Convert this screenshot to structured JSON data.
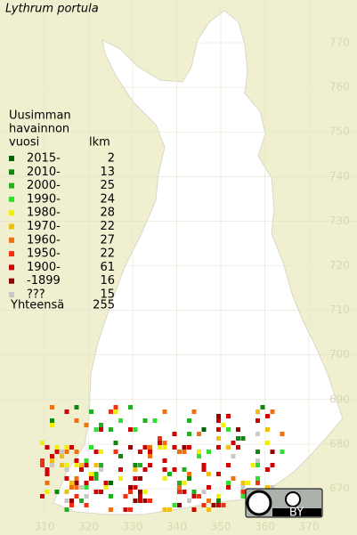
{
  "title": "Lythrum portula",
  "legend": {
    "heading": [
      "Uusimman",
      "havainnon",
      "vuosi"
    ],
    "count_heading": "lkm",
    "items": [
      {
        "label": "2015-",
        "count": 2,
        "color": "#006400"
      },
      {
        "label": "2010-",
        "count": 13,
        "color": "#108810"
      },
      {
        "label": "2000-",
        "count": 25,
        "color": "#20b020"
      },
      {
        "label": "1990-",
        "count": 24,
        "color": "#30e030"
      },
      {
        "label": "1980-",
        "count": 28,
        "color": "#f0f000"
      },
      {
        "label": "1970-",
        "count": 22,
        "color": "#f0c010"
      },
      {
        "label": "1960-",
        "count": 27,
        "color": "#f07010"
      },
      {
        "label": "1950-",
        "count": 22,
        "color": "#f03010"
      },
      {
        "label": "1900-",
        "count": 61,
        "color": "#d00000"
      },
      {
        "label": "-1899",
        "count": 16,
        "color": "#900000"
      },
      {
        "label": "???",
        "count": 15,
        "color": "#c8c8c8"
      }
    ],
    "total_label": "Yhteensä",
    "total": 255
  },
  "axes": {
    "x_ticks": [
      310,
      320,
      330,
      340,
      350,
      360,
      370
    ],
    "y_ticks": [
      670,
      680,
      690,
      700,
      710,
      720,
      730,
      740,
      750,
      760,
      770
    ]
  },
  "badge": {
    "text": "BY"
  }
}
